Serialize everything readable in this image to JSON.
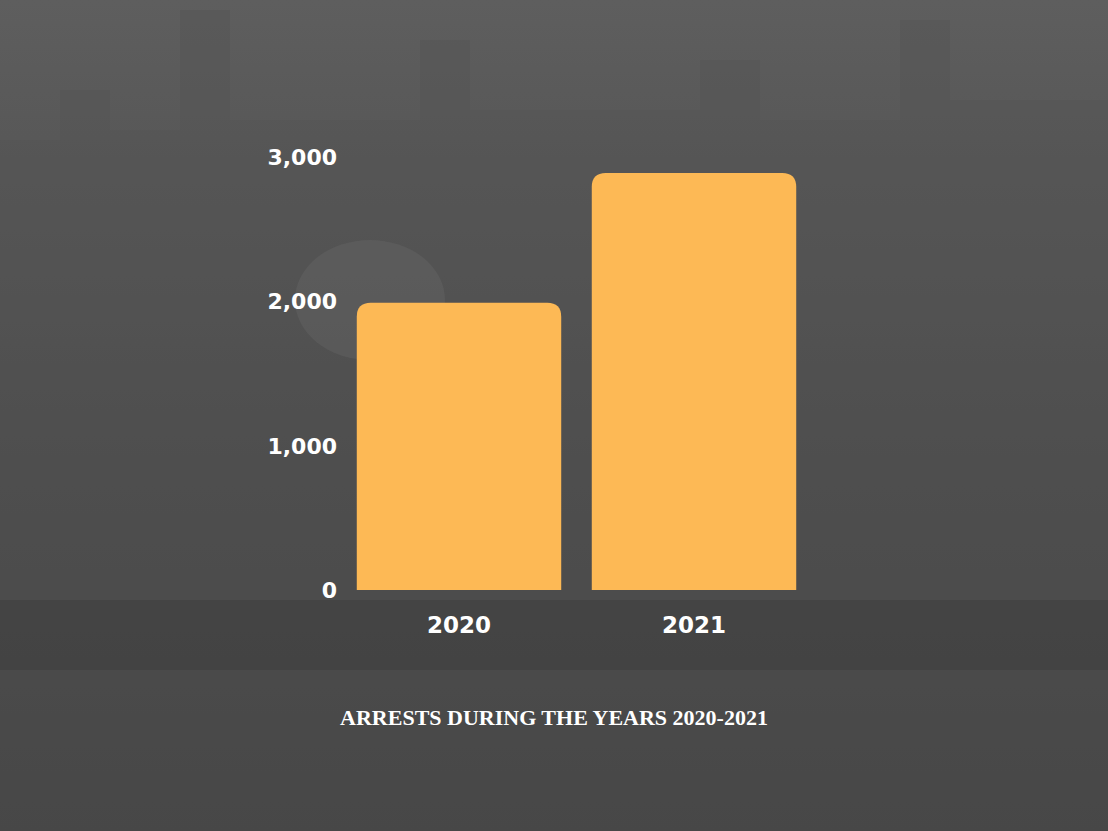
{
  "chart_data": {
    "type": "bar",
    "title": "ARRESTS DURING THE YEARS 2020-2021",
    "categories": [
      "2020",
      "2021"
    ],
    "values": [
      1990,
      2890
    ],
    "color": "#fdb955",
    "ylim": [
      0,
      3000
    ],
    "yticks": [
      0,
      {
        "value": 1000,
        "label": "1,000"
      },
      {
        "value": 2000,
        "label": "2,000"
      },
      {
        "value": 3000,
        "label": "3,000"
      }
    ],
    "grid": false
  }
}
